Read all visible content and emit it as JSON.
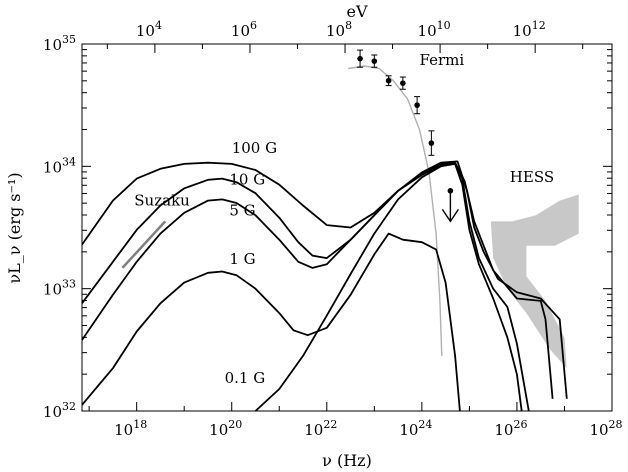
{
  "chart_data": {
    "type": "line",
    "xlabel": "ν (Hz)",
    "ylabel": "νL_ν (erg s⁻¹)",
    "top_axis_label": "eV",
    "x_scale": "log",
    "y_scale": "log",
    "xlim_log10_hz": [
      16.85,
      28.0
    ],
    "ylim_log10": [
      32.0,
      35.0
    ],
    "x_ticks": [
      {
        "exp": 18,
        "base": "10",
        "sup": "18"
      },
      {
        "exp": 20,
        "base": "10",
        "sup": "20"
      },
      {
        "exp": 22,
        "base": "10",
        "sup": "22"
      },
      {
        "exp": 24,
        "base": "10",
        "sup": "24"
      },
      {
        "exp": 26,
        "base": "10",
        "sup": "26"
      },
      {
        "exp": 28,
        "base": "10",
        "sup": "28"
      }
    ],
    "y_ticks": [
      {
        "exp": 32,
        "base": "10",
        "sup": "32"
      },
      {
        "exp": 33,
        "base": "10",
        "sup": "33"
      },
      {
        "exp": 34,
        "base": "10",
        "sup": "34"
      },
      {
        "exp": 35,
        "base": "10",
        "sup": "35"
      }
    ],
    "top_ticks_log10_ev": [
      {
        "exp": 4,
        "base": "10",
        "sup": "4"
      },
      {
        "exp": 6,
        "base": "10",
        "sup": "6"
      },
      {
        "exp": 8,
        "base": "10",
        "sup": "8"
      },
      {
        "exp": 10,
        "base": "10",
        "sup": "10"
      },
      {
        "exp": 12,
        "base": "10",
        "sup": "12"
      }
    ],
    "series": [
      {
        "name": "100 G",
        "color": "#000000",
        "points": [
          [
            16.85,
            33.36
          ],
          [
            17.5,
            33.72
          ],
          [
            18.0,
            33.9
          ],
          [
            18.5,
            33.98
          ],
          [
            19.0,
            34.02
          ],
          [
            19.5,
            34.03
          ],
          [
            20.0,
            34.02
          ],
          [
            20.5,
            33.97
          ],
          [
            21.0,
            33.85
          ],
          [
            21.5,
            33.68
          ],
          [
            22.0,
            33.52
          ],
          [
            22.5,
            33.5
          ],
          [
            23.0,
            33.62
          ],
          [
            23.5,
            33.8
          ],
          [
            24.0,
            33.95
          ],
          [
            24.4,
            34.03
          ],
          [
            24.75,
            34.04
          ],
          [
            24.95,
            33.8
          ],
          [
            25.1,
            33.5
          ],
          [
            25.3,
            33.3
          ],
          [
            25.6,
            33.08
          ],
          [
            26.0,
            32.97
          ],
          [
            26.5,
            32.92
          ],
          [
            26.9,
            32.75
          ],
          [
            27.05,
            32.1
          ]
        ]
      },
      {
        "name": "10 G",
        "color": "#000000",
        "points": [
          [
            16.85,
            32.88
          ],
          [
            17.5,
            33.22
          ],
          [
            18.0,
            33.48
          ],
          [
            18.5,
            33.68
          ],
          [
            19.0,
            33.82
          ],
          [
            19.5,
            33.89
          ],
          [
            19.8,
            33.9
          ],
          [
            20.1,
            33.87
          ],
          [
            20.5,
            33.78
          ],
          [
            21.0,
            33.58
          ],
          [
            21.4,
            33.38
          ],
          [
            21.7,
            33.27
          ],
          [
            22.0,
            33.25
          ],
          [
            22.5,
            33.4
          ],
          [
            23.0,
            33.6
          ],
          [
            23.5,
            33.8
          ],
          [
            24.0,
            33.94
          ],
          [
            24.4,
            34.02
          ],
          [
            24.7,
            34.03
          ],
          [
            24.9,
            33.88
          ],
          [
            25.1,
            33.55
          ],
          [
            25.5,
            33.15
          ],
          [
            26.0,
            32.92
          ],
          [
            26.5,
            32.9
          ],
          [
            26.6,
            32.75
          ],
          [
            26.75,
            32.1
          ]
        ]
      },
      {
        "name": "5 G",
        "color": "#000000",
        "points": [
          [
            16.85,
            32.58
          ],
          [
            17.5,
            32.95
          ],
          [
            18.0,
            33.22
          ],
          [
            18.5,
            33.45
          ],
          [
            19.0,
            33.62
          ],
          [
            19.5,
            33.72
          ],
          [
            19.8,
            33.73
          ],
          [
            20.1,
            33.7
          ],
          [
            20.5,
            33.6
          ],
          [
            21.0,
            33.4
          ],
          [
            21.4,
            33.22
          ],
          [
            21.7,
            33.17
          ],
          [
            22.0,
            33.2
          ],
          [
            22.5,
            33.4
          ],
          [
            23.0,
            33.6
          ],
          [
            23.5,
            33.8
          ],
          [
            24.0,
            33.93
          ],
          [
            24.4,
            34.01
          ],
          [
            24.7,
            34.02
          ],
          [
            24.85,
            33.85
          ],
          [
            25.0,
            33.48
          ],
          [
            25.2,
            33.2
          ],
          [
            25.5,
            32.92
          ],
          [
            25.8,
            32.6
          ],
          [
            26.0,
            32.3
          ],
          [
            26.1,
            32.0
          ]
        ]
      },
      {
        "name": "1 G",
        "color": "#000000",
        "points": [
          [
            16.85,
            32.05
          ],
          [
            17.5,
            32.35
          ],
          [
            18.0,
            32.65
          ],
          [
            18.5,
            32.88
          ],
          [
            19.0,
            33.05
          ],
          [
            19.5,
            33.13
          ],
          [
            19.8,
            33.14
          ],
          [
            20.1,
            33.11
          ],
          [
            20.5,
            33.0
          ],
          [
            21.0,
            32.8
          ],
          [
            21.3,
            32.66
          ],
          [
            21.6,
            32.62
          ],
          [
            22.0,
            32.68
          ],
          [
            22.5,
            32.95
          ],
          [
            23.0,
            33.28
          ],
          [
            23.3,
            33.45
          ],
          [
            23.6,
            33.4
          ],
          [
            24.0,
            33.38
          ],
          [
            24.3,
            33.32
          ],
          [
            24.5,
            33.05
          ],
          [
            24.7,
            32.45
          ],
          [
            24.8,
            32.0
          ]
        ]
      },
      {
        "name": "0.1 G",
        "color": "#000000",
        "points": [
          [
            20.5,
            32.0
          ],
          [
            21.0,
            32.18
          ],
          [
            21.5,
            32.45
          ],
          [
            22.0,
            32.78
          ],
          [
            22.5,
            33.12
          ],
          [
            23.0,
            33.45
          ],
          [
            23.5,
            33.73
          ],
          [
            24.0,
            33.91
          ],
          [
            24.4,
            34.0
          ],
          [
            24.7,
            34.02
          ],
          [
            24.85,
            33.9
          ],
          [
            25.0,
            33.55
          ],
          [
            25.2,
            33.25
          ],
          [
            25.5,
            33.0
          ],
          [
            25.8,
            32.85
          ],
          [
            26.0,
            32.55
          ],
          [
            26.25,
            32.0
          ]
        ]
      }
    ],
    "fermi_model_curve": {
      "color": "#b0b0b0",
      "points": [
        [
          22.45,
          34.8
        ],
        [
          22.8,
          34.82
        ],
        [
          23.1,
          34.8
        ],
        [
          23.4,
          34.7
        ],
        [
          23.7,
          34.55
        ],
        [
          23.95,
          34.3
        ],
        [
          24.15,
          33.95
        ],
        [
          24.3,
          33.45
        ],
        [
          24.38,
          32.9
        ],
        [
          24.42,
          32.45
        ]
      ]
    },
    "fermi_points": [
      {
        "x": 22.7,
        "y": 34.88,
        "yerr": 0.07
      },
      {
        "x": 23.0,
        "y": 34.86,
        "yerr": 0.05
      },
      {
        "x": 23.3,
        "y": 34.7,
        "yerr": 0.04
      },
      {
        "x": 23.6,
        "y": 34.68,
        "yerr": 0.05
      },
      {
        "x": 23.9,
        "y": 34.5,
        "yerr": 0.07
      },
      {
        "x": 24.2,
        "y": 34.19,
        "yerr": 0.1
      }
    ],
    "upper_limit": {
      "x": 24.6,
      "y": 33.8,
      "arrow_to": 33.55
    },
    "hess_band": {
      "color": "#c8c8c8",
      "points": [
        [
          25.45,
          33.55
        ],
        [
          25.9,
          33.55
        ],
        [
          26.4,
          33.6
        ],
        [
          26.9,
          33.72
        ],
        [
          27.3,
          33.77
        ],
        [
          27.3,
          33.45
        ],
        [
          26.8,
          33.35
        ],
        [
          26.2,
          33.35
        ],
        [
          26.2,
          33.1
        ],
        [
          26.6,
          32.9
        ],
        [
          27.0,
          32.6
        ],
        [
          27.05,
          32.35
        ],
        [
          26.7,
          32.5
        ],
        [
          26.2,
          32.8
        ],
        [
          25.8,
          33.0
        ],
        [
          25.5,
          33.25
        ]
      ]
    },
    "suzaku_line": {
      "color": "#808080",
      "points": [
        [
          17.7,
          33.17
        ],
        [
          18.6,
          33.55
        ]
      ]
    },
    "annotations": [
      {
        "text": "Fermi",
        "x": 23.95,
        "y": 34.83
      },
      {
        "text": "100 G",
        "x": 20.0,
        "y": 34.11
      },
      {
        "text": "10 G",
        "x": 19.95,
        "y": 33.85
      },
      {
        "text": "5 G",
        "x": 19.95,
        "y": 33.6
      },
      {
        "text": "1 G",
        "x": 19.95,
        "y": 33.2
      },
      {
        "text": "0.1 G",
        "x": 19.85,
        "y": 32.23
      },
      {
        "text": "Suzaku",
        "x": 17.95,
        "y": 33.68
      },
      {
        "text": "HESS",
        "x": 25.85,
        "y": 33.87
      }
    ]
  }
}
